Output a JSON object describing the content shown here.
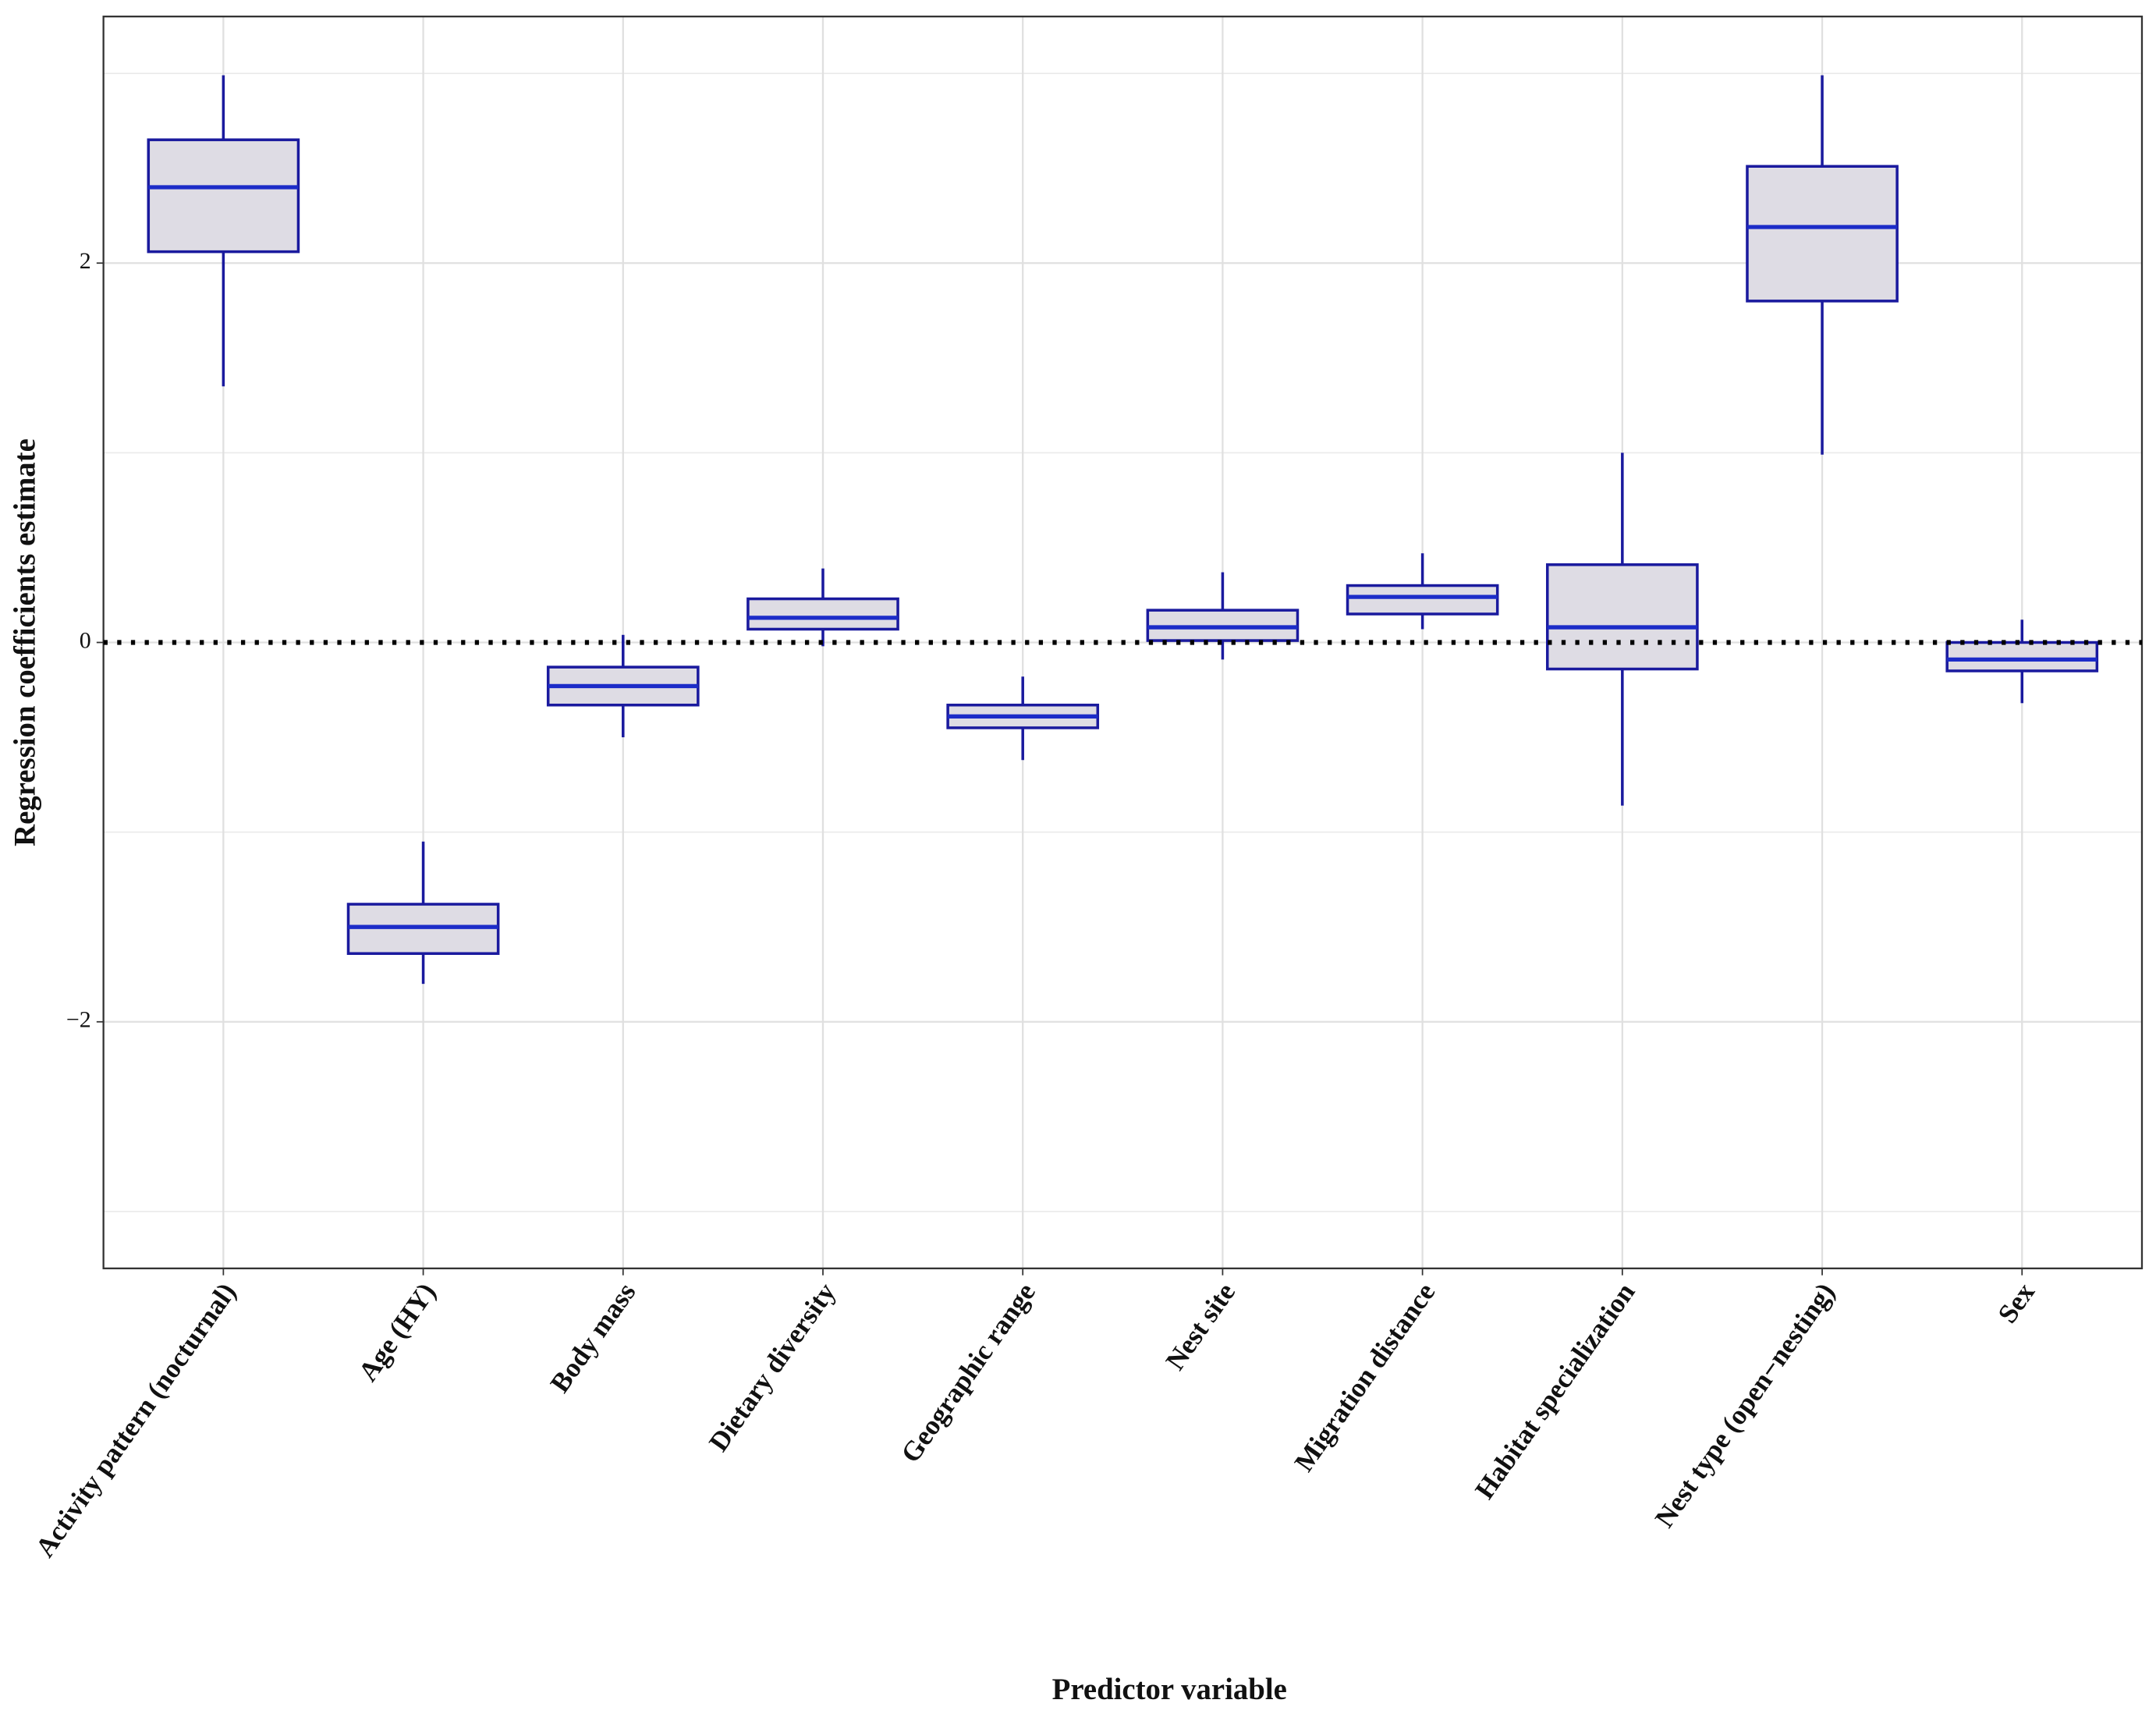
{
  "chart_data": {
    "type": "box",
    "x_label": "Predictor variable",
    "y_label": "Regression coefficients estimate",
    "categories": [
      "Activity pattern (nocturnal)",
      "Age (HY)",
      "Body mass",
      "Dietary diversity",
      "Geographic range",
      "Nest site",
      "Migration distance",
      "Habitat specialization",
      "Nest type (open−nesting)",
      "Sex"
    ],
    "whisker_low": [
      1.35,
      -1.8,
      -0.5,
      -0.02,
      -0.62,
      -0.09,
      0.07,
      -0.86,
      0.99,
      -0.32
    ],
    "q1": [
      2.06,
      -1.64,
      -0.33,
      0.07,
      -0.45,
      0.01,
      0.15,
      -0.14,
      1.8,
      -0.15
    ],
    "median": [
      2.4,
      -1.5,
      -0.23,
      0.13,
      -0.39,
      0.08,
      0.24,
      0.08,
      2.19,
      -0.09
    ],
    "q3": [
      2.65,
      -1.38,
      -0.13,
      0.23,
      -0.33,
      0.17,
      0.3,
      0.41,
      2.51,
      0.0
    ],
    "whisker_high": [
      2.99,
      -1.05,
      0.04,
      0.39,
      -0.18,
      0.37,
      0.47,
      1.0,
      2.99,
      0.12
    ],
    "box_fill": "#dedce4",
    "box_stroke": "#1a1a9e",
    "median_color": "#1c2cc8",
    "reference_line": 0,
    "ylim": [
      -3.3,
      3.3
    ],
    "yticks": [
      {
        "value": -2,
        "label": "−2"
      },
      0,
      2
    ],
    "minor_yticks": [
      -3,
      -1,
      1,
      3
    ],
    "grid": true
  }
}
